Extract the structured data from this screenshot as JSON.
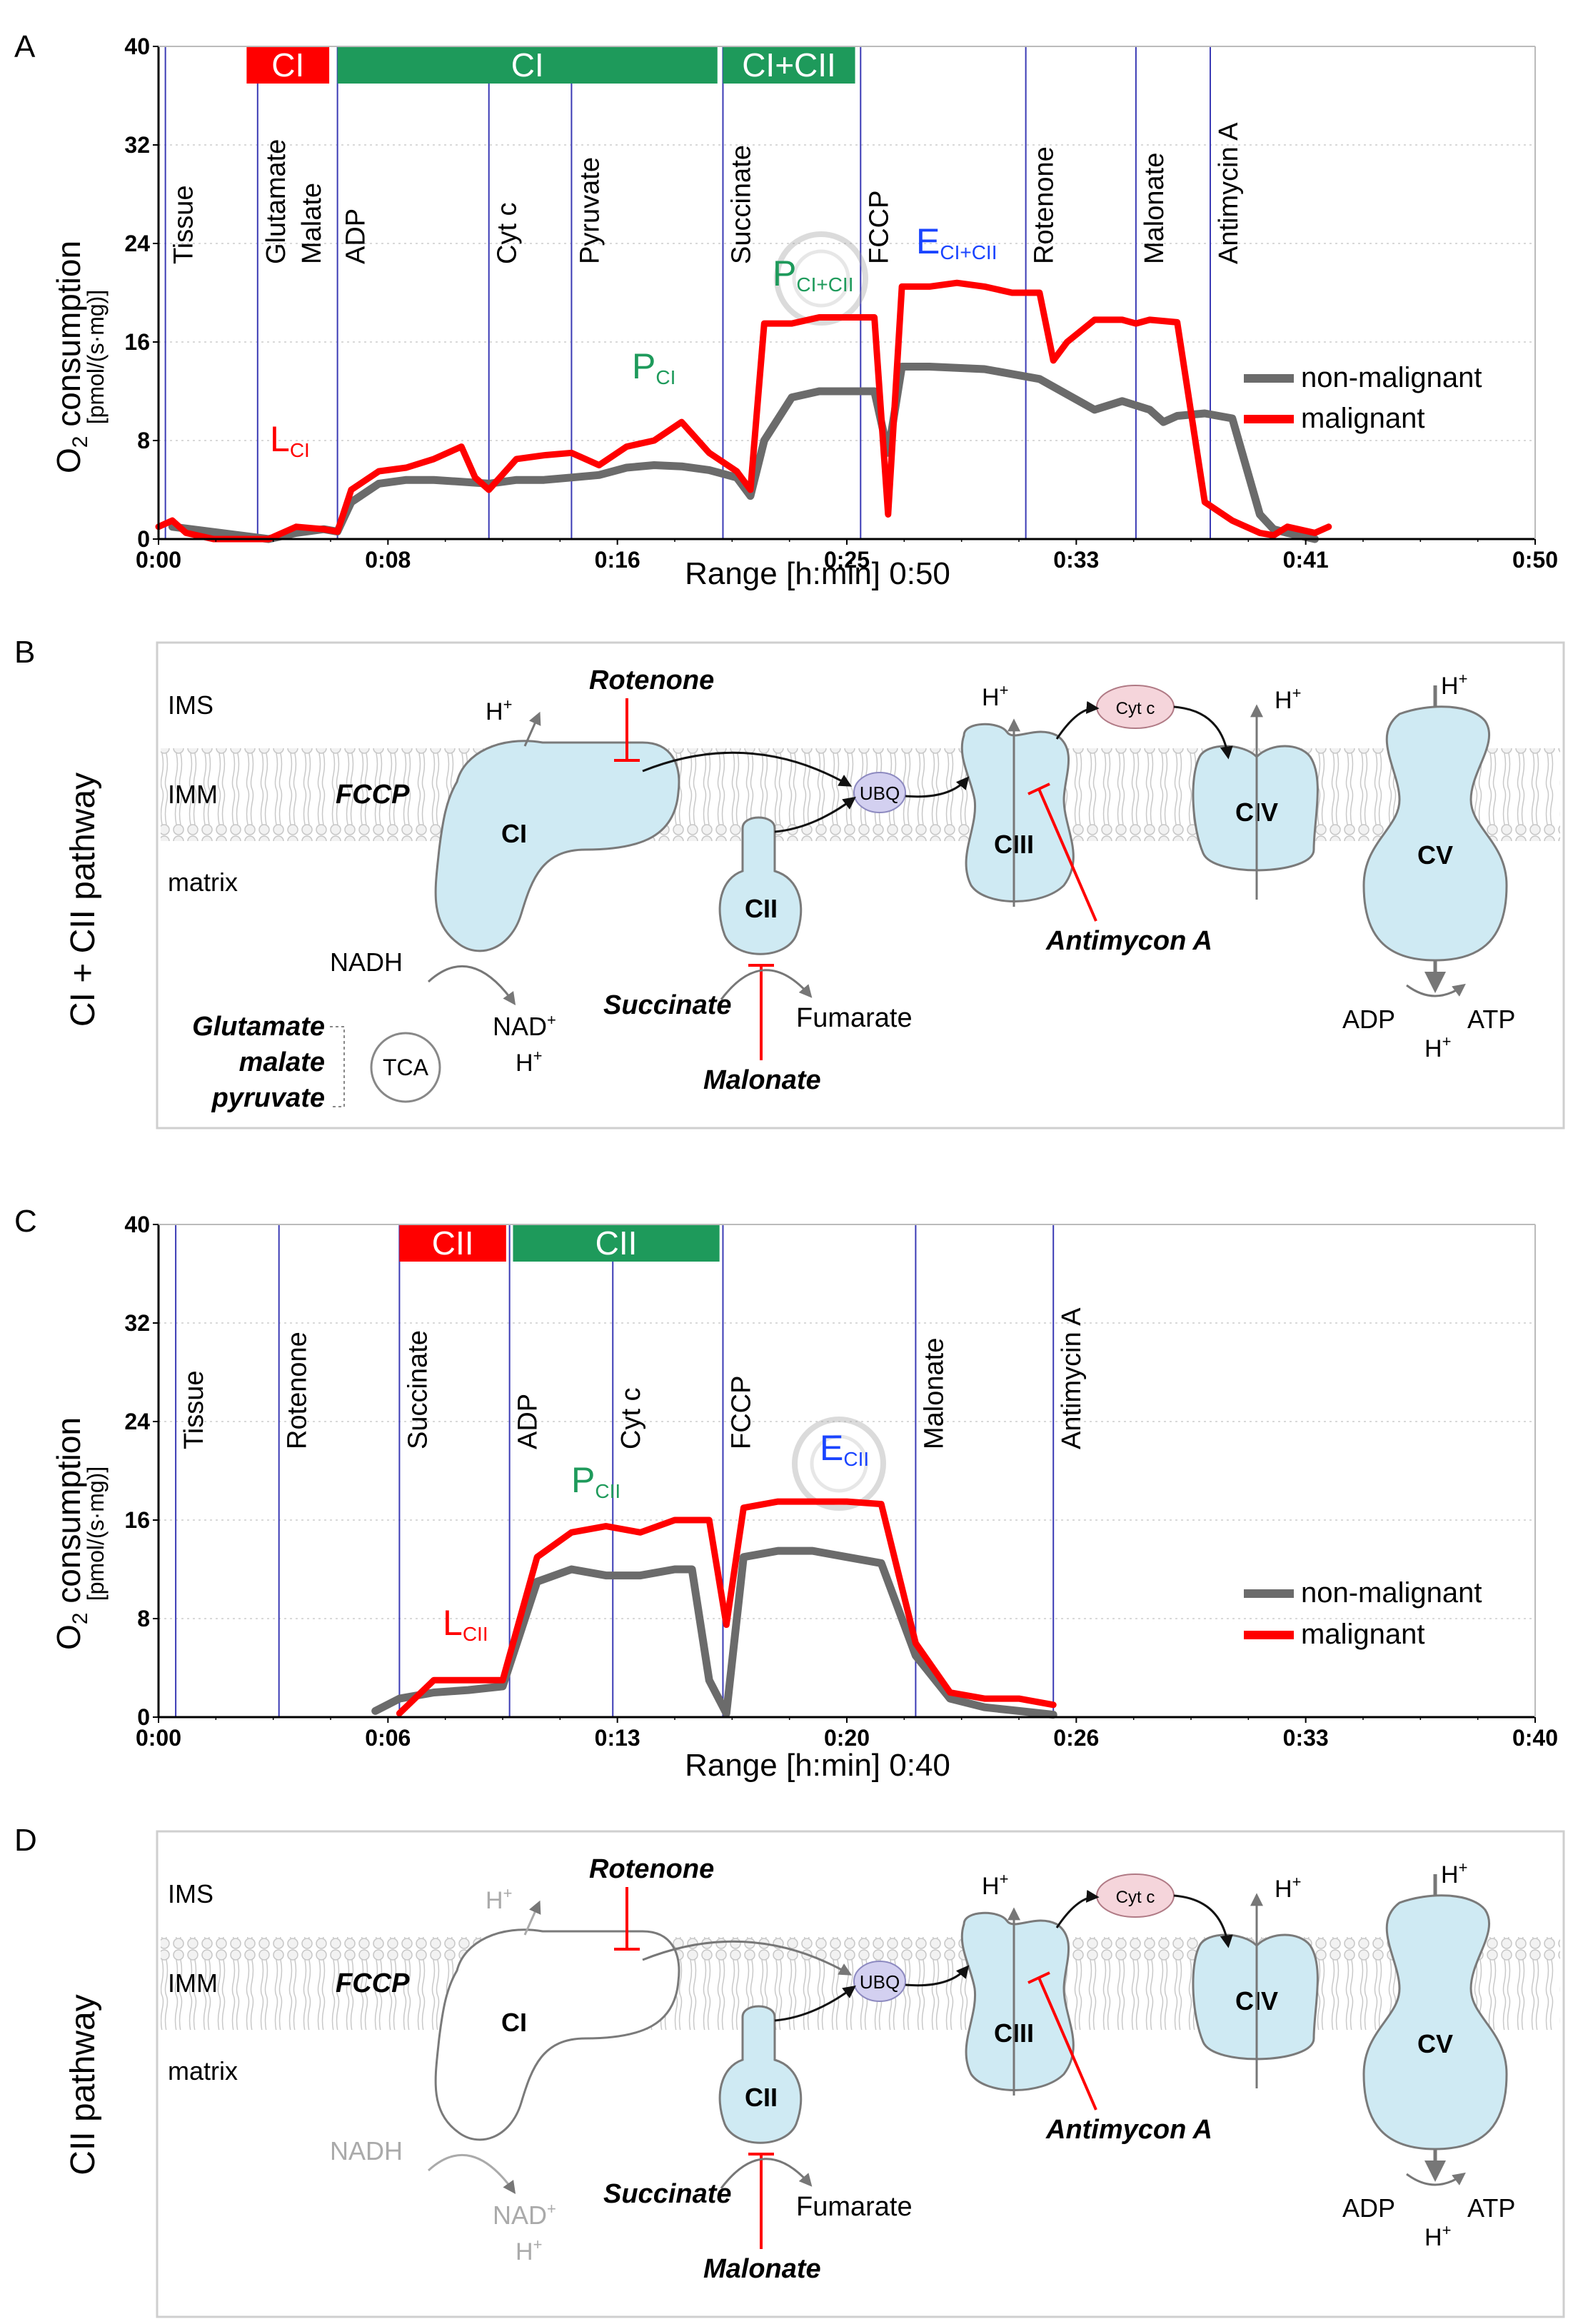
{
  "colors": {
    "red": "#ff0000",
    "green": "#1e9a5b",
    "blue": "#1a44ff",
    "gray": "#6b6b6b",
    "event": "#3b3bb5",
    "protein": "#cfeaf3"
  },
  "panelA": {
    "letter": "A",
    "ylabel": "O",
    "ylabel_sub": "2",
    "ylabel_rest": " consumption",
    "ylabel_units": "[pmol/(s·mg)]",
    "yticks": [
      "40",
      "32",
      "24",
      "16",
      "8",
      "0"
    ],
    "xticks": [
      "0:00",
      "0:08",
      "0:16",
      "0:25",
      "0:33",
      "0:41",
      "0:50"
    ],
    "xlabel": "Range [h:min] 0:50",
    "events": [
      "Tissue",
      "Glutamate",
      "Malate",
      "ADP",
      "Cyt c",
      "Pyruvate",
      "Succinate",
      "FCCP",
      "Rotenone",
      "Malonate",
      "Antimycin A"
    ],
    "bars": [
      "CI",
      "CI",
      "CI+CII"
    ],
    "annotations": {
      "L": "L",
      "L_sub": "CI",
      "P": "P",
      "P_sub": "CI",
      "P2": "P",
      "P2_sub": "CI+CII",
      "E": "E",
      "E_sub": "CI+CII"
    },
    "legend": [
      "non-malignant",
      "malignant"
    ]
  },
  "panelB": {
    "letter": "B",
    "side_label": "CI + CII pathway",
    "layers": [
      "IMS",
      "IMM",
      "matrix"
    ],
    "complexes": [
      "CI",
      "CII",
      "CIII",
      "CIV",
      "CV"
    ],
    "carriers": {
      "ubq": "UBQ",
      "cytc": "Cyt c",
      "tca": "TCA"
    },
    "inhibitors": [
      "Rotenone",
      "Antimycon A",
      "Malonate"
    ],
    "uncoupler": "FCCP",
    "substrates": [
      "Glutamate",
      "malate",
      "pyruvate"
    ],
    "succinate": "Succinate",
    "fumarate": "Fumarate",
    "nadh": "NADH",
    "nad": "NAD",
    "hplus": "H",
    "plus": "+",
    "adp": "ADP",
    "atp": "ATP"
  },
  "panelC": {
    "letter": "C",
    "ylabel": "O",
    "ylabel_sub": "2",
    "ylabel_rest": " consumption",
    "ylabel_units": "[pmol/(s·mg)]",
    "yticks": [
      "40",
      "32",
      "24",
      "16",
      "8",
      "0"
    ],
    "xticks": [
      "0:00",
      "0:06",
      "0:13",
      "0:20",
      "0:26",
      "0:33",
      "0:40"
    ],
    "xlabel": "Range [h:min] 0:40",
    "events": [
      "Tissue",
      "Rotenone",
      "Succinate",
      "ADP",
      "Cyt c",
      "FCCP",
      "Malonate",
      "Antimycin A"
    ],
    "bars": [
      "CII",
      "CII"
    ],
    "annotations": {
      "L": "L",
      "L_sub": "CII",
      "P": "P",
      "P_sub": "CII",
      "E": "E",
      "E_sub": "CII"
    },
    "legend": [
      "non-malignant",
      "malignant"
    ]
  },
  "panelD": {
    "letter": "D",
    "side_label": "CII pathway",
    "layers": [
      "IMS",
      "IMM",
      "matrix"
    ],
    "complexes": [
      "CI",
      "CII",
      "CIII",
      "CIV",
      "CV"
    ],
    "carriers": {
      "ubq": "UBQ",
      "cytc": "Cyt c"
    },
    "inhibitors": [
      "Rotenone",
      "Antimycon A",
      "Malonate"
    ],
    "uncoupler": "FCCP",
    "succinate": "Succinate",
    "fumarate": "Fumarate",
    "nadh": "NADH",
    "nad": "NAD",
    "hplus": "H",
    "plus": "+",
    "adp": "ADP",
    "atp": "ATP"
  },
  "chart_data": [
    {
      "type": "line",
      "title": "",
      "xlabel": "Range [h:min] 0:50",
      "ylabel": "O2 consumption [pmol/(s·mg)]",
      "xlim": [
        0,
        50
      ],
      "ylim": [
        0,
        40
      ],
      "series": [
        {
          "name": "non-malignant",
          "x": [
            0.5,
            4,
            5,
            6,
            6.5,
            7,
            8,
            9,
            10,
            12,
            13,
            14,
            15,
            16,
            17,
            18,
            19,
            20,
            21,
            21.5,
            22,
            23,
            24,
            25,
            26,
            26.5,
            27,
            28,
            30,
            32,
            34,
            35,
            36,
            36.5,
            37,
            38,
            39,
            40,
            40.5,
            41,
            42
          ],
          "values": [
            1,
            0,
            0.5,
            0.8,
            0.6,
            3,
            4.5,
            4.8,
            4.8,
            4.5,
            4.8,
            4.8,
            5,
            5.2,
            5.8,
            6,
            5.9,
            5.6,
            5,
            3.5,
            8,
            11.5,
            12,
            12,
            12,
            7,
            14,
            14,
            13.8,
            13,
            10.5,
            11.2,
            10.5,
            9.5,
            10,
            10.2,
            9.8,
            2,
            0.8,
            0.5,
            0
          ]
        },
        {
          "name": "malignant",
          "x": [
            0,
            0.5,
            1,
            2,
            4,
            5,
            6,
            6.5,
            7,
            8,
            9,
            10,
            11,
            11.5,
            12,
            13,
            14,
            15,
            16,
            17,
            18,
            19,
            20,
            21,
            21.5,
            22,
            23,
            24,
            25,
            26,
            26.5,
            27,
            28,
            29,
            30,
            31,
            32,
            32.5,
            33,
            34,
            35,
            35.5,
            36,
            37,
            38,
            39,
            40,
            40.5,
            41,
            42,
            42.5
          ],
          "values": [
            1,
            1.5,
            0.5,
            0,
            0,
            1,
            0.8,
            0.6,
            4,
            5.5,
            5.8,
            6.5,
            7.5,
            5,
            4,
            6.5,
            6.8,
            7,
            6,
            7.5,
            8,
            9.5,
            7,
            5.5,
            4,
            17.5,
            17.5,
            18,
            18,
            18,
            2,
            20.5,
            20.5,
            20.8,
            20.5,
            20,
            20,
            14.5,
            16,
            17.8,
            17.8,
            17.5,
            17.8,
            17.6,
            3,
            1.5,
            0.5,
            0.3,
            1,
            0.5,
            1
          ]
        }
      ],
      "events": [
        "Tissue",
        "Glutamate Malate",
        "ADP",
        "Cyt c",
        "Pyruvate",
        "Succinate",
        "FCCP",
        "Rotenone",
        "Malonate",
        "Antimycin A"
      ]
    },
    {
      "type": "line",
      "title": "",
      "xlabel": "Range [h:min] 0:40",
      "ylabel": "O2 consumption [pmol/(s·mg)]",
      "xlim": [
        0,
        40
      ],
      "ylim": [
        0,
        40
      ],
      "series": [
        {
          "name": "non-malignant",
          "x": [
            6.3,
            7,
            8,
            9,
            10,
            11,
            12,
            13,
            14,
            15,
            15.5,
            16,
            16.5,
            17,
            18,
            19,
            20,
            21,
            22,
            23,
            24,
            25,
            26
          ],
          "values": [
            0.5,
            1.5,
            2,
            2.2,
            2.5,
            11,
            12,
            11.5,
            11.5,
            12,
            12,
            3,
            0.3,
            13,
            13.5,
            13.5,
            13,
            12.5,
            5,
            1.5,
            0.8,
            0.5,
            0.2
          ]
        },
        {
          "name": "malignant",
          "x": [
            7,
            8,
            9,
            10,
            11,
            12,
            13,
            14,
            15,
            15.5,
            16,
            16.5,
            17,
            18,
            19,
            20,
            21,
            22,
            23,
            24,
            25,
            26
          ],
          "values": [
            0.3,
            3,
            3,
            3,
            13,
            15,
            15.5,
            15,
            16,
            16,
            16,
            7.5,
            17,
            17.5,
            17.5,
            17.5,
            17.3,
            6,
            2,
            1.5,
            1.5,
            1
          ]
        }
      ],
      "events": [
        "Tissue",
        "Rotenone",
        "Succinate",
        "ADP",
        "Cyt c",
        "FCCP",
        "Malonate",
        "Antimycin A"
      ]
    }
  ]
}
